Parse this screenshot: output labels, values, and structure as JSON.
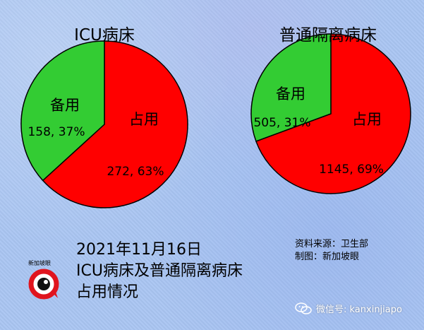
{
  "chart_data": [
    {
      "type": "pie",
      "title": "ICU病床",
      "slices": [
        {
          "label": "占用",
          "value": 272,
          "percent": "63%",
          "color": "#ff0000"
        },
        {
          "label": "备用",
          "value": 158,
          "percent": "37%",
          "color": "#33cc33"
        }
      ]
    },
    {
      "type": "pie",
      "title": "普通隔离病床",
      "slices": [
        {
          "label": "占用",
          "value": 1145,
          "percent": "69%",
          "color": "#ff0000"
        },
        {
          "label": "备用",
          "value": 505,
          "percent": "31%",
          "color": "#33cc33"
        }
      ]
    }
  ],
  "charts": [
    {
      "title": "ICU病床",
      "occupied_label": "占用",
      "occupied_value": "272, 63%",
      "spare_label": "备用",
      "spare_value": "158, 37%"
    },
    {
      "title": "普通隔离病床",
      "occupied_label": "占用",
      "occupied_value": "1145, 69%",
      "spare_label": "备用",
      "spare_value": "505, 31%"
    }
  ],
  "caption": {
    "line1": "2021年11月16日",
    "line2": "ICU病床及普通隔离病床",
    "line3": "占用情况"
  },
  "source": {
    "line1": "资料来源：卫生部",
    "line2": "制图：新加坡眼"
  },
  "logo": {
    "text": "新加坡眼"
  },
  "watermark": {
    "text": "微信号: kanxinjiapo",
    "icon": "wechat-icon"
  },
  "colors": {
    "occupied": "#ff0000",
    "spare": "#33cc33",
    "background": "#a9c5f2"
  }
}
